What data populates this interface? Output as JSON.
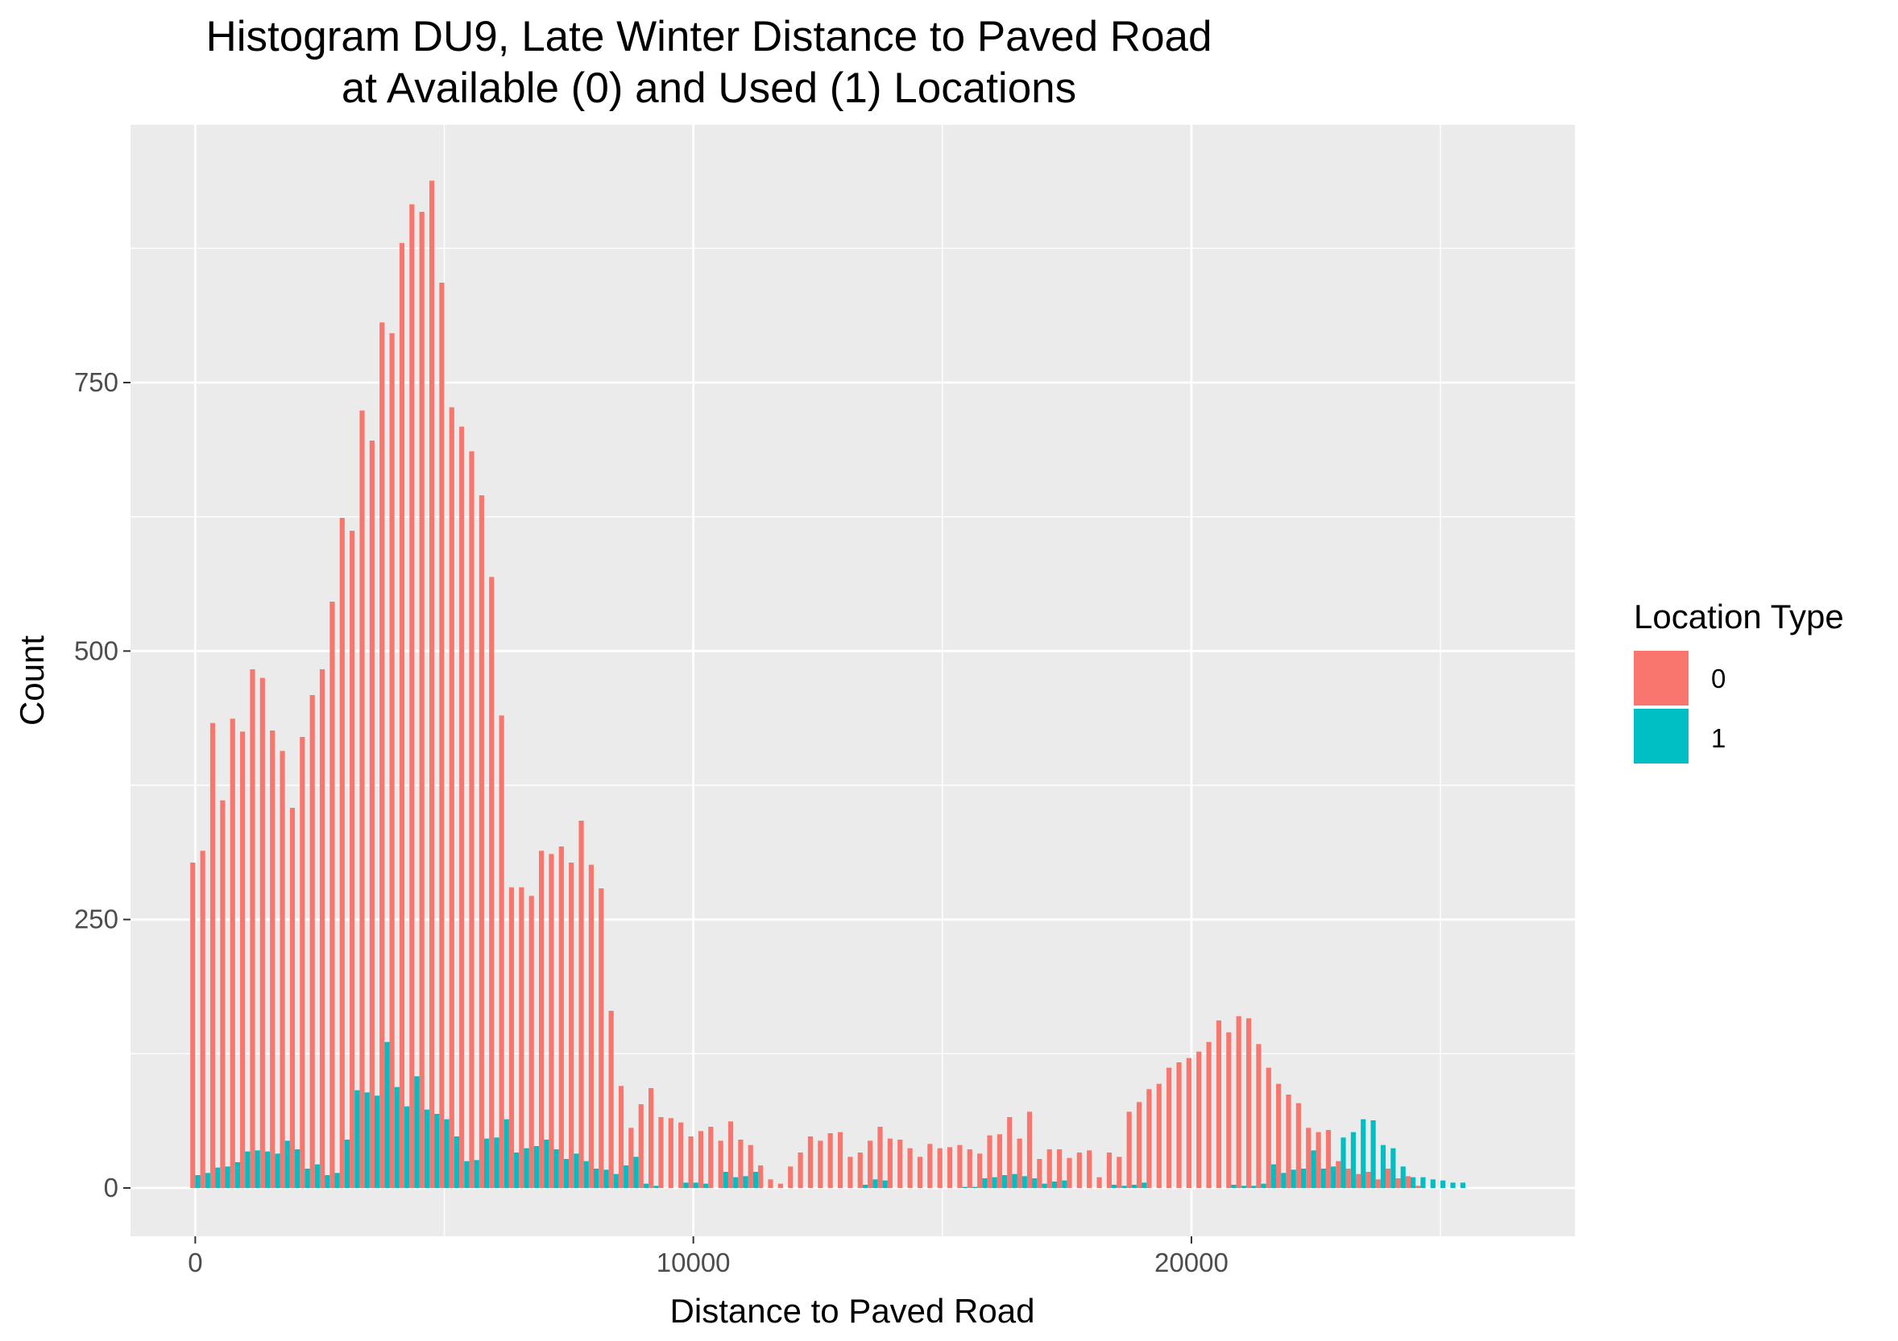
{
  "chart_data": {
    "type": "bar",
    "title_line1": "Histogram DU9, Late Winter Distance to Paved Road",
    "title_line2": "at Available (0) and Used (1) Locations",
    "xlabel": "Distance to Paved Road",
    "ylabel": "Count",
    "xlim": [
      -1300,
      27700
    ],
    "ylim": [
      -45,
      990
    ],
    "x_ticks": [
      0,
      10000,
      20000
    ],
    "x_tick_labels": [
      "0",
      "10000",
      "20000"
    ],
    "x_minor_ticks": [
      5000,
      15000,
      25000
    ],
    "y_ticks": [
      0,
      250,
      500,
      750
    ],
    "y_tick_labels": [
      "0",
      "250",
      "500",
      "750"
    ],
    "y_minor_ticks": [
      125,
      375,
      625,
      875
    ],
    "bin_start": 0,
    "bin_width": 200,
    "grid": true,
    "legend_title": "Location Type",
    "legend_position": "right",
    "series": [
      {
        "name": "0",
        "color": "#F8766D",
        "values": [
          303,
          314,
          433,
          361,
          437,
          425,
          483,
          475,
          426,
          407,
          354,
          420,
          459,
          483,
          546,
          624,
          612,
          724,
          696,
          806,
          796,
          880,
          916,
          909,
          938,
          843,
          727,
          709,
          686,
          645,
          569,
          440,
          280,
          280,
          272,
          314,
          311,
          318,
          303,
          342,
          301,
          279,
          165,
          95,
          56,
          78,
          93,
          66,
          65,
          61,
          48,
          53,
          57,
          44,
          62,
          45,
          40,
          21,
          8,
          4,
          20,
          33,
          48,
          44,
          51,
          52,
          29,
          33,
          44,
          57,
          46,
          45,
          37,
          29,
          41,
          37,
          38,
          40,
          36,
          32,
          49,
          50,
          66,
          46,
          71,
          27,
          36,
          36,
          28,
          33,
          35,
          10,
          33,
          29,
          71,
          80,
          92,
          97,
          112,
          117,
          121,
          127,
          136,
          156,
          145,
          160,
          158,
          134,
          112,
          97,
          87,
          79,
          56,
          52,
          54,
          25,
          18,
          13,
          15,
          8,
          18,
          9,
          11,
          2,
          0
        ],
        "value_precision": "read from chart"
      },
      {
        "name": "1",
        "color": "#00BFC4",
        "values": [
          12,
          14,
          19,
          20,
          24,
          34,
          35,
          34,
          32,
          44,
          36,
          18,
          22,
          12,
          14,
          45,
          91,
          89,
          86,
          136,
          94,
          76,
          104,
          73,
          69,
          64,
          48,
          25,
          26,
          46,
          47,
          64,
          33,
          37,
          39,
          45,
          36,
          27,
          32,
          25,
          18,
          17,
          13,
          21,
          29,
          4,
          2,
          0,
          0,
          5,
          5,
          4,
          0,
          15,
          10,
          11,
          15,
          0,
          0,
          0,
          0,
          0,
          0,
          0,
          0,
          0,
          0,
          3,
          8,
          7,
          0,
          0,
          0,
          0,
          0,
          0,
          0,
          1,
          1,
          9,
          10,
          12,
          13,
          11,
          9,
          4,
          6,
          7,
          0,
          0,
          0,
          0,
          3,
          2,
          3,
          5,
          0,
          0,
          0,
          0,
          0,
          0,
          0,
          0,
          3,
          2,
          2,
          4,
          22,
          14,
          17,
          18,
          35,
          18,
          20,
          47,
          52,
          64,
          63,
          40,
          37,
          20,
          10,
          10,
          8,
          7,
          5,
          5,
          0,
          0,
          0,
          0,
          0,
          0,
          0,
          0
        ]
      }
    ]
  }
}
